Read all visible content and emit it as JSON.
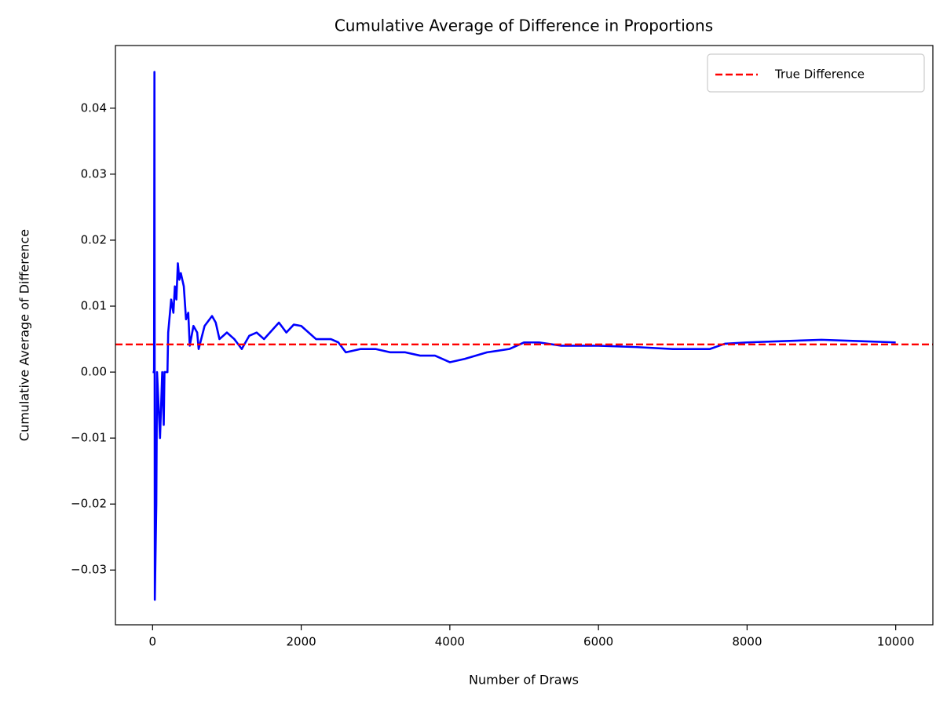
{
  "chart_data": {
    "type": "line",
    "title": "Cumulative Average of Difference in Proportions",
    "xlabel": "Number of Draws",
    "ylabel": "Cumulative Average of Difference",
    "x": [
      1,
      20,
      25,
      30,
      50,
      60,
      100,
      130,
      150,
      160,
      200,
      210,
      250,
      280,
      300,
      320,
      340,
      360,
      380,
      420,
      450,
      480,
      500,
      550,
      600,
      620,
      700,
      800,
      850,
      900,
      1000,
      1100,
      1200,
      1300,
      1400,
      1500,
      1700,
      1800,
      1900,
      2000,
      2200,
      2400,
      2500,
      2600,
      2800,
      3000,
      3200,
      3400,
      3600,
      3800,
      4000,
      4200,
      4500,
      4800,
      5000,
      5200,
      5500,
      6000,
      6500,
      7000,
      7500,
      7700,
      8000,
      8500,
      9000,
      9500,
      10000
    ],
    "values": [
      0,
      0,
      0.0455,
      -0.0345,
      -0.02,
      0,
      -0.01,
      0,
      -0.008,
      0,
      0,
      0.006,
      0.011,
      0.009,
      0.013,
      0.011,
      0.0165,
      0.014,
      0.015,
      0.013,
      0.008,
      0.009,
      0.004,
      0.007,
      0.006,
      0.0035,
      0.007,
      0.0085,
      0.0075,
      0.005,
      0.006,
      0.005,
      0.0035,
      0.0055,
      0.006,
      0.005,
      0.0075,
      0.006,
      0.0072,
      0.007,
      0.005,
      0.005,
      0.0045,
      0.003,
      0.0035,
      0.0035,
      0.003,
      0.003,
      0.0025,
      0.0025,
      0.0015,
      0.002,
      0.003,
      0.0035,
      0.0045,
      0.0045,
      0.004,
      0.004,
      0.0038,
      0.0035,
      0.0035,
      0.0043,
      0.0045,
      0.0047,
      0.0049,
      0.0047,
      0.0045
    ],
    "color": "#0000ff",
    "hlines": [
      {
        "name": "True Difference",
        "value": 0.0042,
        "color": "#ff0000",
        "style": "dashed"
      }
    ],
    "legend": "upper right",
    "xlim": [
      -500,
      10500
    ],
    "xticks": [
      0,
      2000,
      4000,
      6000,
      8000,
      10000
    ],
    "ylim": [
      -0.0383,
      0.0495
    ],
    "yticks": [
      {
        "value": -0.03,
        "label": "−0.03"
      },
      {
        "value": -0.02,
        "label": "−0.02"
      },
      {
        "value": -0.01,
        "label": "−0.01"
      },
      {
        "value": 0,
        "label": "0.00"
      },
      0.01,
      0.02,
      0.03,
      0.04
    ]
  }
}
